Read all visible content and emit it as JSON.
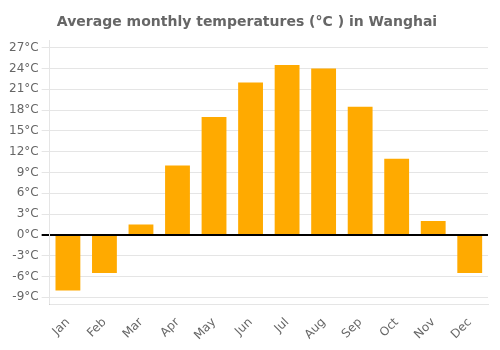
{
  "chart_data": {
    "type": "bar",
    "title": "Average monthly temperatures (°C ) in Wanghai",
    "categories": [
      "Jan",
      "Feb",
      "Mar",
      "Apr",
      "May",
      "Jun",
      "Jul",
      "Aug",
      "Sep",
      "Oct",
      "Nov",
      "Dec"
    ],
    "values": [
      -8.0,
      -5.5,
      1.5,
      10.0,
      17.0,
      22.0,
      24.5,
      24.0,
      18.5,
      11.0,
      2.0,
      -5.5
    ],
    "color": "#FFAA00",
    "ylim": [
      -10,
      28
    ],
    "yticks": [
      {
        "value": -9,
        "label": "-9°C"
      },
      {
        "value": -6,
        "label": "-6°C"
      },
      {
        "value": -3,
        "label": "-3°C"
      },
      {
        "value": 0,
        "label": "0°C"
      },
      {
        "value": 3,
        "label": "3°C"
      },
      {
        "value": 6,
        "label": "6°C"
      },
      {
        "value": 9,
        "label": "9°C"
      },
      {
        "value": 12,
        "label": "12°C"
      },
      {
        "value": 15,
        "label": "15°C"
      },
      {
        "value": 18,
        "label": "18°C"
      },
      {
        "value": 21,
        "label": "21°C"
      },
      {
        "value": 24,
        "label": "24°C"
      },
      {
        "value": 27,
        "label": "27°C"
      }
    ],
    "grid": true
  }
}
